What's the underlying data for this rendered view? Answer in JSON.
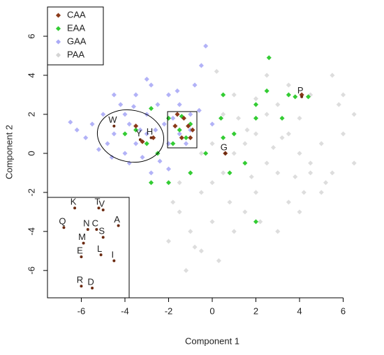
{
  "chart_data": {
    "type": "scatter",
    "xlabel": "Component 1",
    "ylabel": "Component 2",
    "xlim": [
      -7.55,
      7.55
    ],
    "ylim": [
      -7.4,
      7.5
    ],
    "xticks": [
      -6,
      -4,
      -2,
      0,
      2,
      4,
      6
    ],
    "yticks": [
      -6,
      -4,
      -2,
      0,
      2,
      4,
      6
    ],
    "legend": "top-left",
    "series": [
      {
        "name": "CAA",
        "color": "#8b3a1a",
        "alpha": 1,
        "x": [
          -1.3,
          -1.1,
          -1.4,
          -0.9,
          -1.7,
          -3.2,
          0.6,
          4.1,
          -1.6,
          -1.0,
          -2.7,
          -3.5
        ],
        "values": [
          1.8,
          1.4,
          0.8,
          1.2,
          1.4,
          0.6,
          0,
          3,
          2.0,
          0.8,
          0.8,
          1.4
        ]
      },
      {
        "name": "EAA",
        "color": "#33cc33",
        "alpha": 1,
        "x": [
          -3.5,
          -3,
          -2.5,
          -2,
          -1.5,
          -1.2,
          -1,
          -1.8,
          -4,
          -2.8,
          -2,
          -1,
          0.5,
          0.8,
          1,
          2,
          2,
          2.5,
          3.2,
          3.5,
          3.8,
          2.6,
          0.5,
          0.4,
          -2.8,
          -0.3,
          1.5,
          2,
          -1.4,
          4.4
        ],
        "values": [
          1.2,
          0.5,
          0,
          1.8,
          1.2,
          0.8,
          1.5,
          0.5,
          1,
          -1.5,
          -1.5,
          -1,
          0.8,
          -1,
          1,
          -3.5,
          2.5,
          3.2,
          1.8,
          3,
          2.9,
          4.9,
          3,
          1.8,
          2.3,
          0,
          -0.5,
          1.8,
          1.9,
          2.9
        ]
      },
      {
        "name": "GAA",
        "color": "#5555ee",
        "alpha": 0.45,
        "x": [
          -5.5,
          -5,
          -4.8,
          -4.5,
          -4.2,
          -4,
          -3.8,
          -3.5,
          -3.5,
          -3.2,
          -3,
          -3,
          -2.8,
          -2.5,
          -2.5,
          -2.2,
          -2,
          -2,
          -1.8,
          -1.5,
          -1.5,
          -1.2,
          -1,
          -0.8,
          -0.5,
          -0.3,
          0,
          -4.5,
          -5.8,
          -6.2,
          -3.8,
          -2.8,
          -4,
          -3.3,
          -2.6,
          -5.2,
          -4.6,
          -3.6,
          -2,
          -1,
          -6.5,
          -3,
          -1.6,
          -0.6,
          -2.4
        ],
        "values": [
          1.5,
          2,
          0.5,
          1,
          2.5,
          0,
          1.5,
          3,
          0.5,
          -0.2,
          2,
          1,
          3.5,
          0,
          2.5,
          1.5,
          -0.8,
          3,
          1.8,
          1,
          2.5,
          0.5,
          2,
          3.5,
          4.5,
          5.5,
          1.5,
          3,
          0.8,
          1.2,
          -0.5,
          -1,
          2,
          1.2,
          1.2,
          0.2,
          -0.2,
          2.4,
          0.5,
          1.2,
          1.6,
          3.8,
          3.2,
          2.2,
          -0.4
        ]
      },
      {
        "name": "PAA",
        "color": "#aaaaaa",
        "alpha": 0.4,
        "x": [
          -1,
          -0.5,
          0,
          -1.5,
          -1,
          -2,
          -0.5,
          -1.2,
          0,
          0.5,
          1,
          1.5,
          2,
          2.5,
          3,
          3.5,
          4,
          4.5,
          5,
          5.5,
          6,
          6.5,
          3,
          2.5,
          2,
          1.5,
          1,
          3.5,
          4,
          4.5,
          5,
          6,
          5.5,
          4.5,
          3.5,
          2.5,
          1,
          0.5,
          0,
          -0.5,
          1.2,
          2.2,
          3,
          4,
          5.2,
          6.5,
          3.8,
          2.8,
          1.8,
          0.8,
          -0.8,
          -1.8,
          0.3,
          1.6,
          5.8,
          4.2,
          3.2,
          2,
          -1.5,
          0.2
        ],
        "values": [
          -1,
          -2,
          -1.5,
          -3,
          -4,
          -4.5,
          -5,
          -6,
          -3.5,
          -1,
          0,
          0.5,
          1,
          2,
          2.5,
          1,
          0,
          -1,
          -2,
          -1,
          1,
          2,
          -1,
          -0.5,
          -2,
          -3,
          -4,
          -2.5,
          -3,
          -0.5,
          0.5,
          3,
          4,
          3,
          3.5,
          4,
          3,
          2,
          0.5,
          0,
          1.8,
          -3.5,
          -4,
          1.8,
          -1.5,
          -0.5,
          -1.2,
          0.3,
          -1.2,
          -2.5,
          -4.8,
          -2.5,
          -5.5,
          1.2,
          2.5,
          -2,
          0.8,
          2.8,
          -1.5,
          4.2
        ]
      }
    ],
    "annotations": [
      {
        "text": "W",
        "x": -4.5,
        "y": 1.4
      },
      {
        "text": "Y",
        "x": -3.3,
        "y": 0.7
      },
      {
        "text": "H",
        "x": -2.8,
        "y": 0.8
      },
      {
        "text": "G",
        "x": 0.6,
        "y": 0.0
      },
      {
        "text": "P",
        "x": 4.1,
        "y": 2.9
      }
    ],
    "inset_annotations": [
      {
        "text": "K",
        "x": -6.3,
        "y": -2.8
      },
      {
        "text": "T",
        "x": -5.2,
        "y": -2.8
      },
      {
        "text": "V",
        "x": -5.0,
        "y": -2.9
      },
      {
        "text": "Q",
        "x": -6.8,
        "y": -3.8
      },
      {
        "text": "N",
        "x": -5.7,
        "y": -3.9
      },
      {
        "text": "C",
        "x": -5.3,
        "y": -3.9
      },
      {
        "text": "A",
        "x": -4.3,
        "y": -3.7
      },
      {
        "text": "S",
        "x": -5.0,
        "y": -4.3
      },
      {
        "text": "M",
        "x": -5.9,
        "y": -4.6
      },
      {
        "text": "E",
        "x": -6.0,
        "y": -5.3
      },
      {
        "text": "L",
        "x": -5.1,
        "y": -5.2
      },
      {
        "text": "I",
        "x": -4.5,
        "y": -5.5
      },
      {
        "text": "R",
        "x": -6.0,
        "y": -6.8
      },
      {
        "text": "D",
        "x": -5.5,
        "y": -6.9
      }
    ]
  }
}
